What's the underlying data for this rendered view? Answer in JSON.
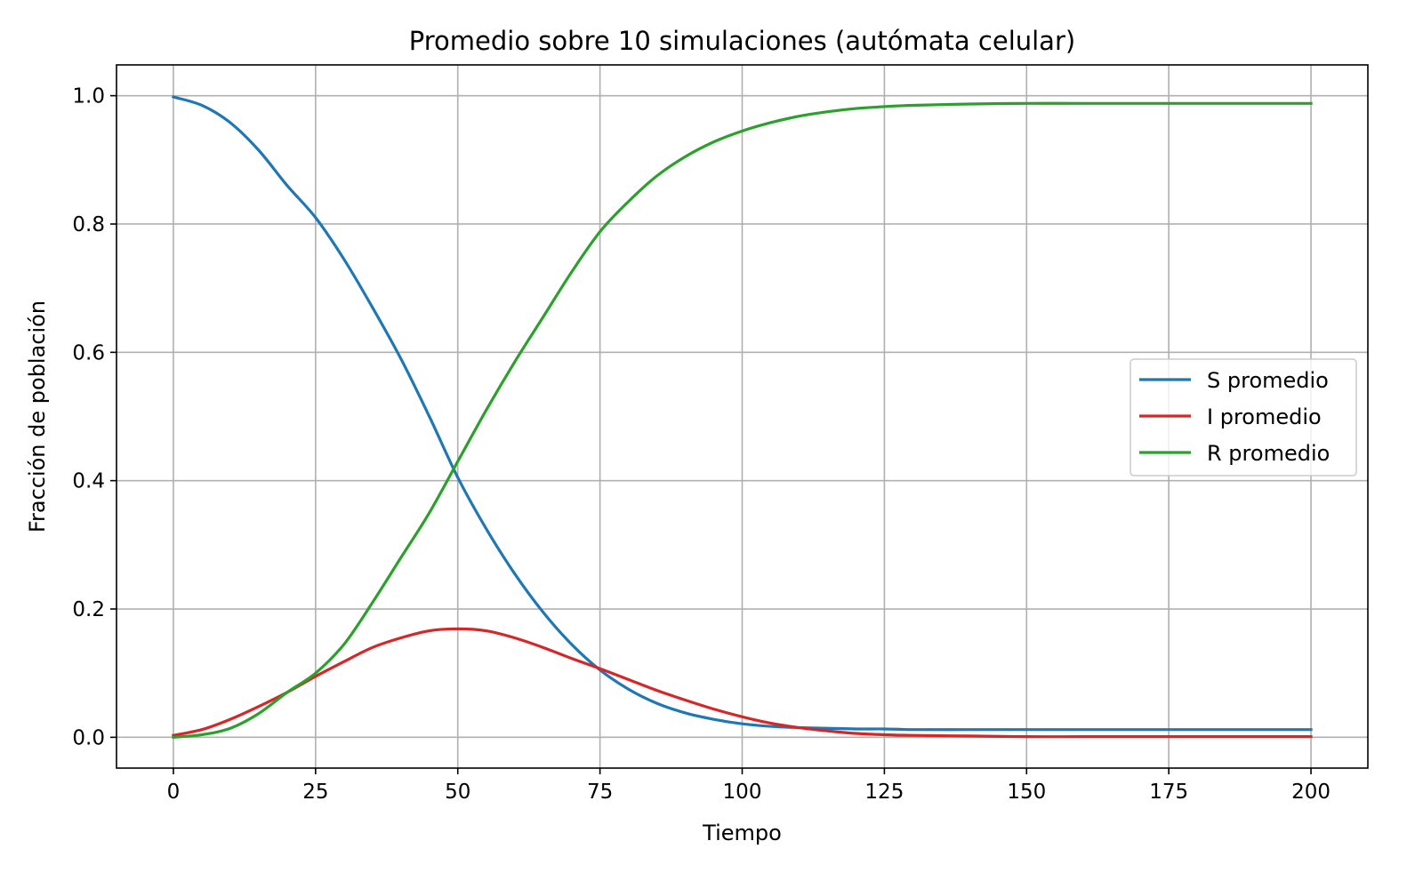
{
  "chart_data": {
    "type": "line",
    "title": "Promedio sobre 10 simulaciones (autómata celular)",
    "xlabel": "Tiempo",
    "ylabel": "Fracción de población",
    "xlim": [
      -10,
      210
    ],
    "ylim": [
      -0.048,
      1.048
    ],
    "x_ticks": [
      0,
      25,
      50,
      75,
      100,
      125,
      150,
      175,
      200
    ],
    "y_ticks": [
      0.0,
      0.2,
      0.4,
      0.6,
      0.8,
      1.0
    ],
    "x_tick_labels": [
      "0",
      "25",
      "50",
      "75",
      "100",
      "125",
      "150",
      "175",
      "200"
    ],
    "y_tick_labels": [
      "0.0",
      "0.2",
      "0.4",
      "0.6",
      "0.8",
      "1.0"
    ],
    "grid": true,
    "legend_position": "center-right",
    "x": [
      0,
      5,
      10,
      15,
      20,
      25,
      30,
      35,
      40,
      45,
      50,
      55,
      60,
      65,
      70,
      75,
      80,
      85,
      90,
      95,
      100,
      105,
      110,
      115,
      120,
      125,
      130,
      140,
      150,
      160,
      170,
      180,
      190,
      200
    ],
    "series": [
      {
        "name": "S promedio",
        "color": "#1f77b4",
        "values": [
          0.998,
          0.985,
          0.958,
          0.915,
          0.86,
          0.81,
          0.745,
          0.67,
          0.59,
          0.5,
          0.405,
          0.325,
          0.255,
          0.195,
          0.145,
          0.105,
          0.075,
          0.053,
          0.038,
          0.028,
          0.021,
          0.017,
          0.015,
          0.014,
          0.013,
          0.013,
          0.012,
          0.012,
          0.012,
          0.012,
          0.012,
          0.012,
          0.012,
          0.012
        ]
      },
      {
        "name": "I promedio",
        "color": "#d62728",
        "values": [
          0.003,
          0.012,
          0.028,
          0.048,
          0.07,
          0.095,
          0.118,
          0.14,
          0.155,
          0.166,
          0.169,
          0.166,
          0.155,
          0.14,
          0.123,
          0.107,
          0.09,
          0.073,
          0.058,
          0.044,
          0.032,
          0.022,
          0.015,
          0.01,
          0.006,
          0.004,
          0.003,
          0.002,
          0.001,
          0.001,
          0.001,
          0.001,
          0.001,
          0.001
        ]
      },
      {
        "name": "R promedio",
        "color": "#2ca02c",
        "values": [
          0.0,
          0.004,
          0.014,
          0.037,
          0.07,
          0.1,
          0.145,
          0.21,
          0.28,
          0.35,
          0.43,
          0.51,
          0.585,
          0.655,
          0.725,
          0.788,
          0.835,
          0.875,
          0.905,
          0.928,
          0.945,
          0.958,
          0.968,
          0.975,
          0.98,
          0.983,
          0.985,
          0.987,
          0.988,
          0.988,
          0.988,
          0.988,
          0.988,
          0.988
        ]
      }
    ]
  }
}
